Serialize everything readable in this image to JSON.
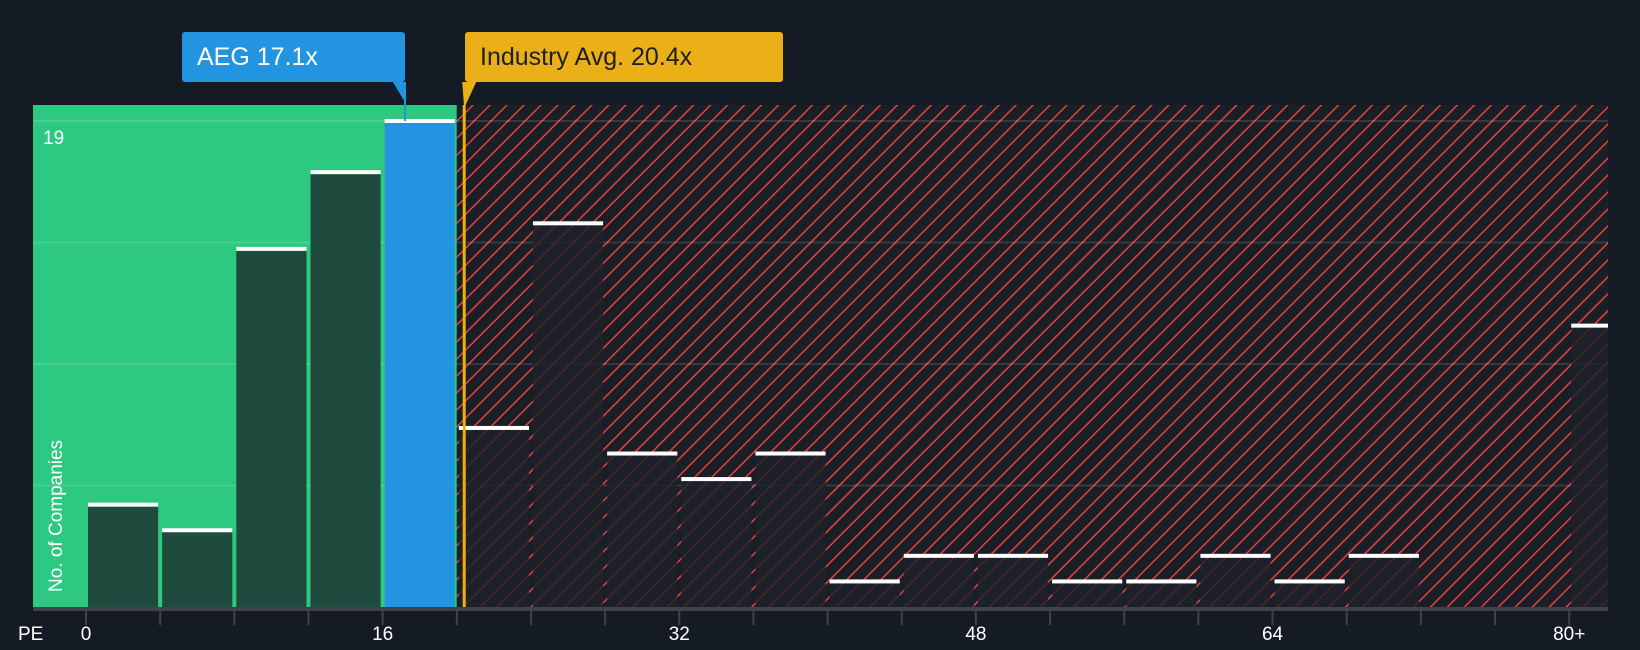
{
  "chart_data": {
    "type": "bar",
    "title": "",
    "xlabel": "PE",
    "ylabel": "No. of Companies",
    "x_tick_labels": [
      "0",
      "16",
      "32",
      "48",
      "64",
      "80+"
    ],
    "x_ticks": [
      0,
      16,
      32,
      48,
      64,
      80
    ],
    "y_tick_labels": [
      "19"
    ],
    "ylim": [
      0,
      19
    ],
    "bin_width": 4,
    "bins": [
      0,
      4,
      8,
      12,
      16,
      20,
      24,
      28,
      32,
      36,
      40,
      44,
      48,
      52,
      56,
      60,
      64,
      68,
      72,
      76,
      80
    ],
    "values": [
      4,
      3,
      14,
      17,
      19,
      7,
      15,
      6,
      5,
      6,
      1,
      2,
      2,
      1,
      1,
      2,
      1,
      2,
      0,
      0,
      11
    ],
    "highlight": {
      "label": "AEG 17.1x",
      "value": 17.1,
      "color": "#2394e0"
    },
    "industry": {
      "label": "Industry Avg. 20.4x",
      "value": 20.4,
      "color": "#ebb018"
    },
    "colors": {
      "good_zone": "#2ec980",
      "bad_zone": "#e8403f",
      "bar_good": "#1e4b3d",
      "bar_bad": "#1b202b"
    }
  }
}
